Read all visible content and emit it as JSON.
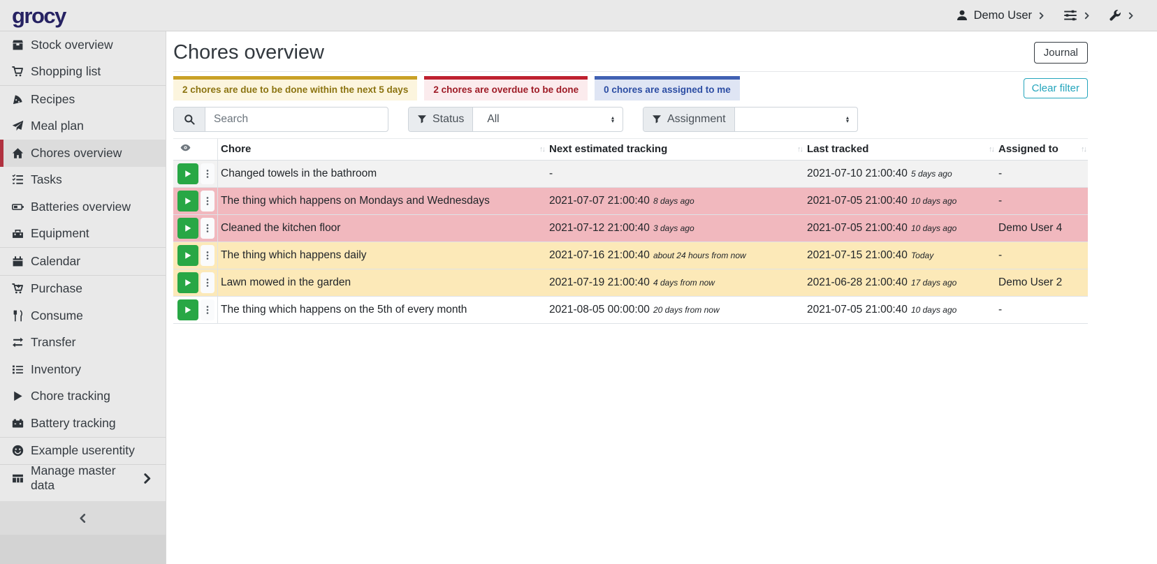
{
  "topbar": {
    "logo": "grocy",
    "user": {
      "label": "Demo User"
    }
  },
  "sidebar": {
    "items": [
      {
        "label": "Stock overview",
        "icon": "boxes"
      },
      {
        "label": "Shopping list",
        "icon": "cart",
        "divider_after": true
      },
      {
        "label": "Recipes",
        "icon": "pizza"
      },
      {
        "label": "Meal plan",
        "icon": "paper-plane"
      },
      {
        "label": "Chores overview",
        "icon": "home",
        "active": true
      },
      {
        "label": "Tasks",
        "icon": "tasks"
      },
      {
        "label": "Batteries overview",
        "icon": "battery"
      },
      {
        "label": "Equipment",
        "icon": "toolbox",
        "divider_after": true
      },
      {
        "label": "Calendar",
        "icon": "calendar",
        "divider_after": true
      },
      {
        "label": "Purchase",
        "icon": "cart-plus"
      },
      {
        "label": "Consume",
        "icon": "utensils"
      },
      {
        "label": "Transfer",
        "icon": "exchange"
      },
      {
        "label": "Inventory",
        "icon": "list"
      },
      {
        "label": "Chore tracking",
        "icon": "play"
      },
      {
        "label": "Battery tracking",
        "icon": "car-battery",
        "divider_after": true
      },
      {
        "label": "Example userentity",
        "icon": "smiley",
        "divider_after": true
      },
      {
        "label": "Manage master data",
        "icon": "table",
        "has_submenu": true
      }
    ]
  },
  "header": {
    "title": "Chores overview",
    "journal_label": "Journal"
  },
  "banners": [
    {
      "text": "2 chores are due to be done within the next 5 days",
      "type": "warning"
    },
    {
      "text": "2 chores are overdue to be done",
      "type": "danger"
    },
    {
      "text": "0 chores are assigned to me",
      "type": "info"
    }
  ],
  "filters": {
    "search_placeholder": "Search",
    "status_label": "Status",
    "status_value": "All",
    "assignment_label": "Assignment",
    "assignment_value": "",
    "clear_filter_label": "Clear filter"
  },
  "table": {
    "columns": [
      {
        "label": "Chore"
      },
      {
        "label": "Next estimated tracking"
      },
      {
        "label": "Last tracked"
      },
      {
        "label": "Assigned to"
      }
    ],
    "rows": [
      {
        "chore": "Changed towels in the bathroom",
        "next": "-",
        "next_relative": "",
        "last": "2021-07-10 21:00:40",
        "last_relative": "5 days ago",
        "assigned": "-",
        "status": "stripe"
      },
      {
        "chore": "The thing which happens on Mondays and Wednesdays",
        "next": "2021-07-07 21:00:40",
        "next_relative": "8 days ago",
        "last": "2021-07-05 21:00:40",
        "last_relative": "10 days ago",
        "assigned": "-",
        "status": "danger"
      },
      {
        "chore": "Cleaned the kitchen floor",
        "next": "2021-07-12 21:00:40",
        "next_relative": "3 days ago",
        "last": "2021-07-05 21:00:40",
        "last_relative": "10 days ago",
        "assigned": "Demo User 4",
        "status": "danger"
      },
      {
        "chore": "The thing which happens daily",
        "next": "2021-07-16 21:00:40",
        "next_relative": "about 24 hours from now",
        "last": "2021-07-15 21:00:40",
        "last_relative": "Today",
        "assigned": "-",
        "status": "warning"
      },
      {
        "chore": "Lawn mowed in the garden",
        "next": "2021-07-19 21:00:40",
        "next_relative": "4 days from now",
        "last": "2021-06-28 21:00:40",
        "last_relative": "17 days ago",
        "assigned": "Demo User 2",
        "status": "warning"
      },
      {
        "chore": "The thing which happens on the 5th of every month",
        "next": "2021-08-05 00:00:00",
        "next_relative": "20 days from now",
        "last": "2021-07-05 21:00:40",
        "last_relative": "10 days ago",
        "assigned": "-",
        "status": "none"
      }
    ]
  },
  "colors": {
    "brand_logo": "#262262",
    "success": "#28a745",
    "sidebar_active_marker": "#b0313f",
    "warning_banner_border": "#c9a127",
    "warning_banner_text": "#8c7411",
    "danger_banner_border": "#bf2130",
    "danger_banner_text": "#9e1b26",
    "info_banner_border": "#4161b3",
    "info_banner_text": "#2c4da3",
    "clear_filter_teal": "#24a5bc",
    "row_danger_bg": "#f1b8be",
    "row_warning_bg": "#fce9b8"
  }
}
